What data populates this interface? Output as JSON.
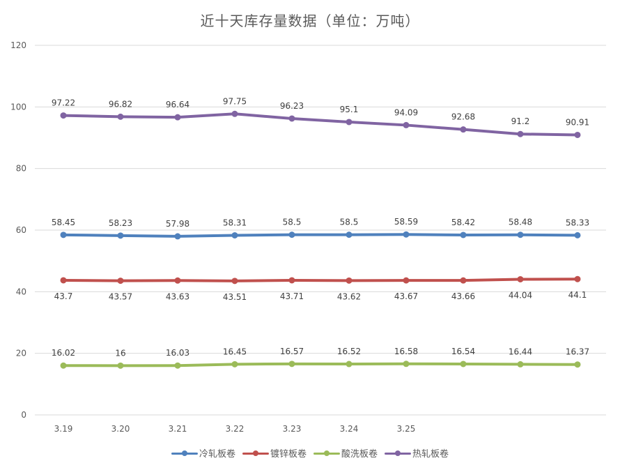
{
  "chart_data": {
    "type": "line",
    "title": "近十天库存量数据（单位：万吨）",
    "xlabel": "",
    "ylabel": "",
    "ylim": [
      0,
      120
    ],
    "yticks": [
      0,
      20,
      40,
      60,
      80,
      100,
      120
    ],
    "grid": true,
    "legend_position": "bottom",
    "categories": [
      "3.19",
      "3.20",
      "3.21",
      "3.22",
      "3.23",
      "3.24",
      "3.25",
      "",
      "",
      ""
    ],
    "series": [
      {
        "name": "冷轧板卷",
        "color": "#4F81BD",
        "label_pos": "above",
        "values": [
          58.45,
          58.23,
          57.98,
          58.31,
          58.5,
          58.5,
          58.59,
          58.42,
          58.48,
          58.33
        ]
      },
      {
        "name": "镀锌板卷",
        "color": "#C0504D",
        "label_pos": "below",
        "values": [
          43.7,
          43.57,
          43.63,
          43.51,
          43.71,
          43.62,
          43.67,
          43.66,
          44.04,
          44.1
        ]
      },
      {
        "name": "酸洗板卷",
        "color": "#9BBB59",
        "label_pos": "above",
        "values": [
          16.02,
          16,
          16.03,
          16.45,
          16.57,
          16.52,
          16.58,
          16.54,
          16.44,
          16.37
        ]
      },
      {
        "name": "热轧板卷",
        "color": "#8064A2",
        "label_pos": "above",
        "values": [
          97.22,
          96.82,
          96.64,
          97.75,
          96.23,
          95.1,
          94.09,
          92.68,
          91.2,
          90.91
        ]
      }
    ]
  }
}
